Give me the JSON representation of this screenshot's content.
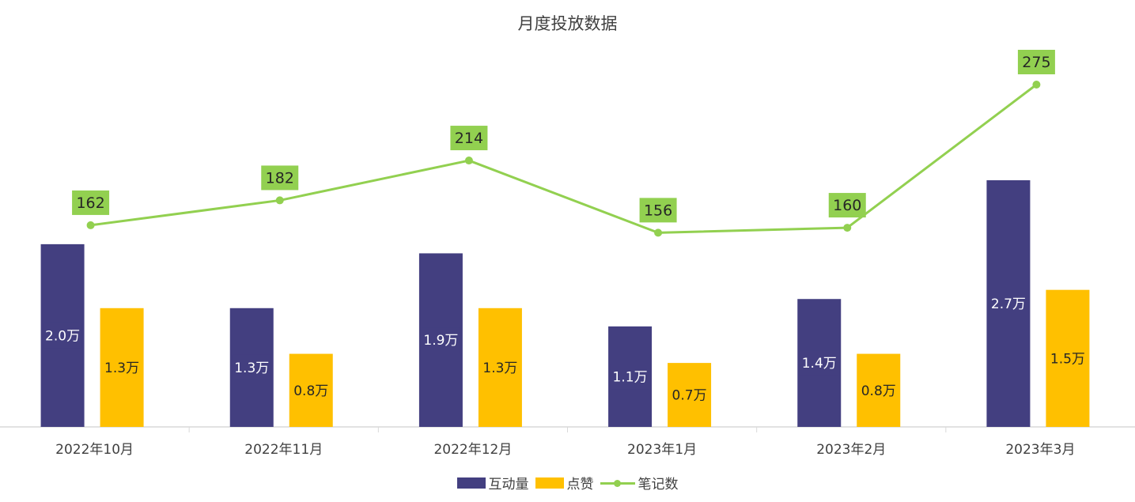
{
  "chart_data": {
    "type": "bar",
    "title": "月度投放数据",
    "categories": [
      "2022年10月",
      "2022年11月",
      "2022年12月",
      "2023年1月",
      "2023年2月",
      "2023年3月"
    ],
    "series": [
      {
        "name": "互动量",
        "kind": "bar",
        "color": "#433F80",
        "values": [
          2.0,
          1.3,
          1.9,
          1.1,
          1.4,
          2.7
        ],
        "labels": [
          "2.0万",
          "1.3万",
          "1.9万",
          "1.1万",
          "1.4万",
          "2.7万"
        ]
      },
      {
        "name": "点赞",
        "kind": "bar",
        "color": "#FFC000",
        "values": [
          1.3,
          0.8,
          1.3,
          0.7,
          0.8,
          1.5
        ],
        "labels": [
          "1.3万",
          "0.8万",
          "1.3万",
          "0.7万",
          "0.8万",
          "1.5万"
        ]
      },
      {
        "name": "笔记数",
        "kind": "line",
        "color": "#92D050",
        "values": [
          162,
          182,
          214,
          156,
          160,
          275
        ],
        "labels": [
          "162",
          "182",
          "214",
          "156",
          "160",
          "275"
        ]
      }
    ],
    "bar_unit": "万",
    "ylim_bar": [
      0,
      3.0
    ],
    "ylim_line": [
      0,
      360
    ],
    "grid": false,
    "legend_position": "bottom"
  }
}
